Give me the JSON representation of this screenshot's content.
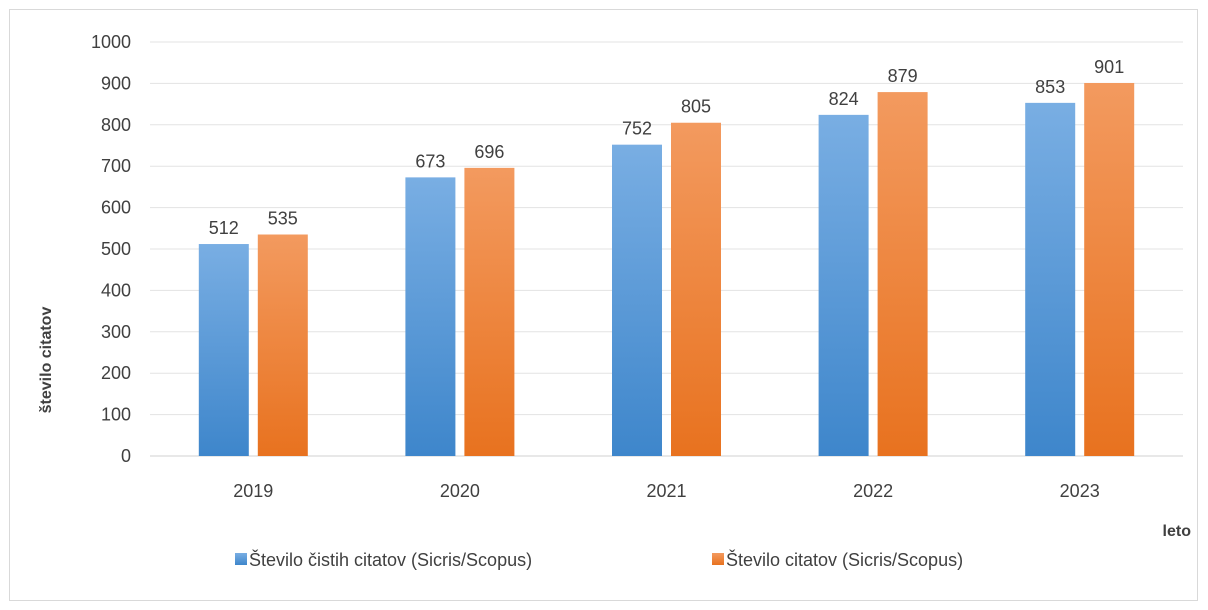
{
  "chart_data": {
    "type": "bar",
    "title": "",
    "xlabel": "leto",
    "ylabel": "število citatov",
    "categories": [
      "2019",
      "2020",
      "2021",
      "2022",
      "2023"
    ],
    "ylim": [
      0,
      1000
    ],
    "yticks": [
      0,
      100,
      200,
      300,
      400,
      500,
      600,
      700,
      800,
      900,
      1000
    ],
    "grid": true,
    "legend_position": "bottom",
    "series": [
      {
        "name": "Število čistih citatov (Sicris/Scopus)",
        "values": [
          512,
          673,
          752,
          824,
          853
        ],
        "color_top": "#79aee3",
        "color_bottom": "#3e86cb"
      },
      {
        "name": "Število citatov (Sicris/Scopus)",
        "values": [
          535,
          696,
          805,
          879,
          901
        ],
        "color_top": "#f39a5f",
        "color_bottom": "#e8721f"
      }
    ]
  }
}
